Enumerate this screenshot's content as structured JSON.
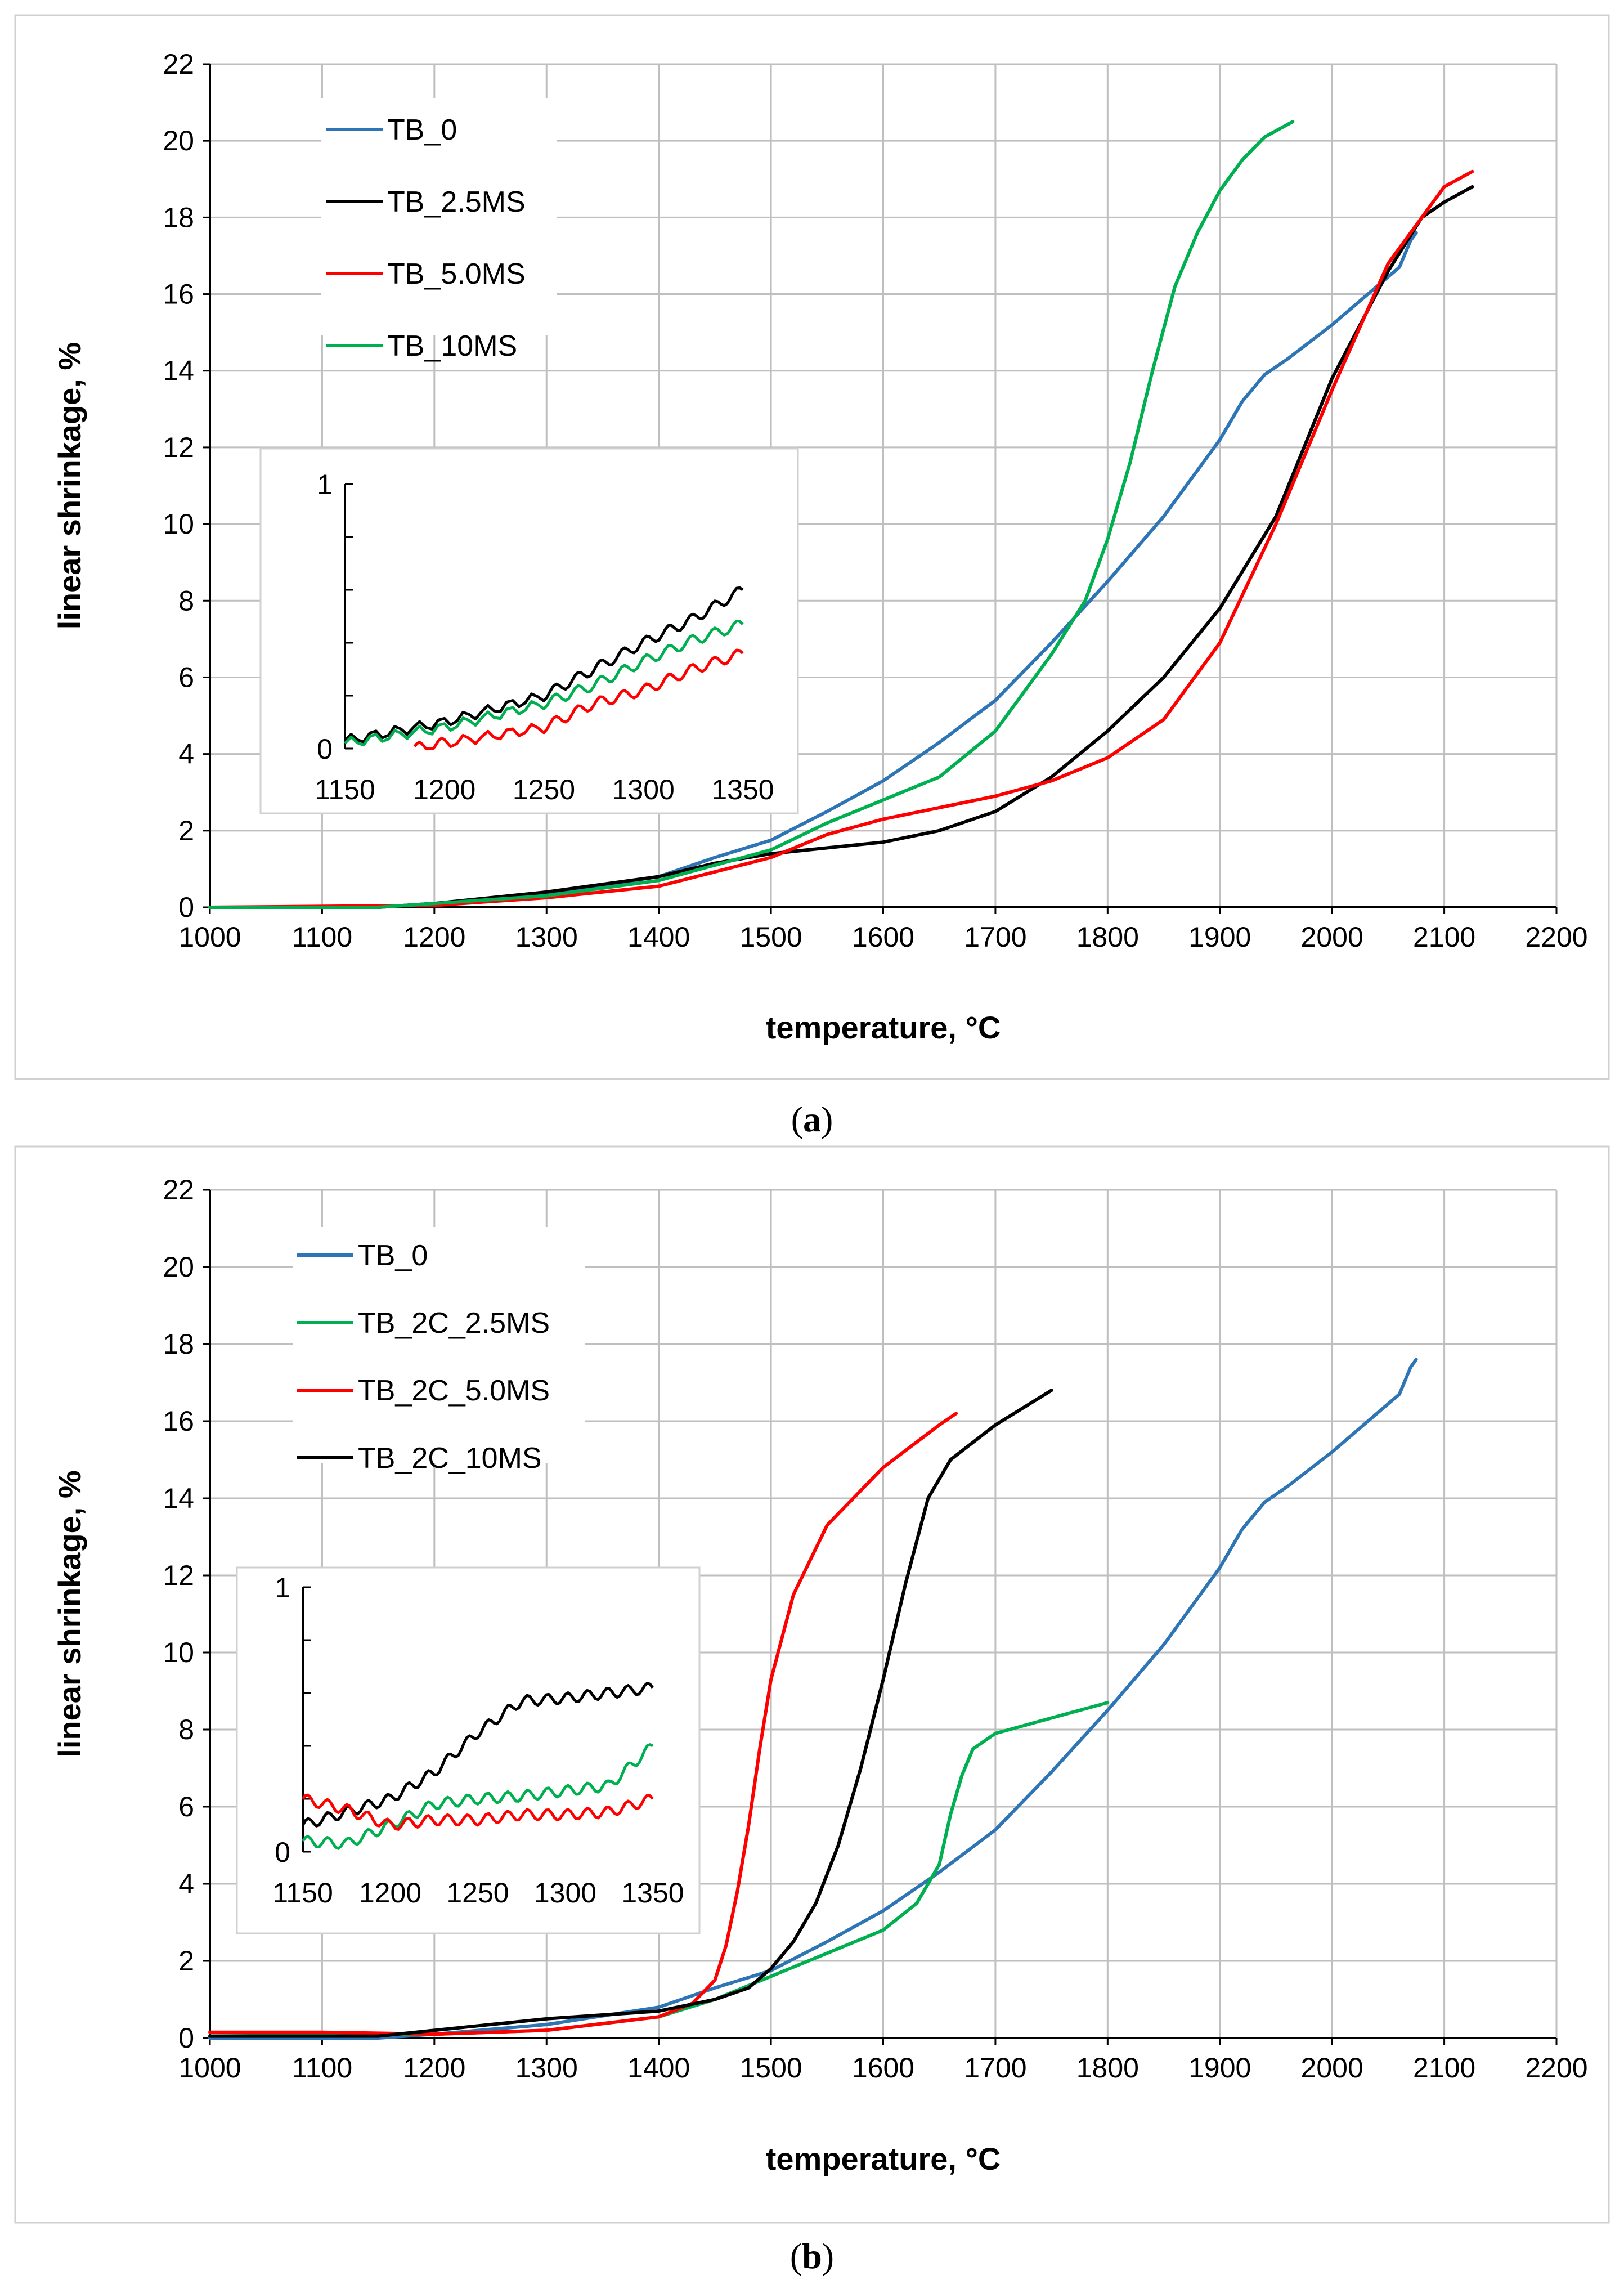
{
  "colors": {
    "blue": "#2E75B6",
    "black": "#000000",
    "red": "#FF0000",
    "green": "#00B050",
    "grid": "#BFBFBF",
    "frame": "#D0D0D0"
  },
  "chart_data": [
    {
      "id": "a",
      "caption_open": "(",
      "caption_letter": "a",
      "caption_close": ")",
      "type": "line",
      "xlabel": "temperature, °C",
      "ylabel": "linear shrinkage, %",
      "xlim": [
        1000,
        2200
      ],
      "ylim": [
        0,
        22
      ],
      "xticks": [
        "1000",
        "1100",
        "1200",
        "1300",
        "1400",
        "1500",
        "1600",
        "1700",
        "1800",
        "1900",
        "2000",
        "2100",
        "2200"
      ],
      "yticks": [
        "0",
        "2",
        "4",
        "6",
        "8",
        "10",
        "12",
        "14",
        "16",
        "18",
        "20",
        "22"
      ],
      "grid": true,
      "legend_position": "top-left",
      "series": [
        {
          "name": "TB_0",
          "color": "#2E75B6",
          "x": [
            1000,
            1150,
            1200,
            1300,
            1400,
            1450,
            1500,
            1550,
            1600,
            1650,
            1700,
            1750,
            1800,
            1850,
            1900,
            1920,
            1940,
            1960,
            2000,
            2040,
            2060,
            2070,
            2075
          ],
          "y": [
            0,
            0,
            0.1,
            0.35,
            0.8,
            1.3,
            1.75,
            2.5,
            3.3,
            4.3,
            5.4,
            6.9,
            8.5,
            10.2,
            12.2,
            13.2,
            13.9,
            14.3,
            15.2,
            16.2,
            16.7,
            17.4,
            17.6
          ]
        },
        {
          "name": "TB_2.5MS",
          "color": "#000000",
          "x": [
            1000,
            1150,
            1200,
            1300,
            1400,
            1450,
            1500,
            1600,
            1650,
            1700,
            1750,
            1800,
            1850,
            1900,
            1950,
            2000,
            2050,
            2080,
            2100,
            2125
          ],
          "y": [
            0,
            0,
            0.1,
            0.4,
            0.8,
            1.15,
            1.4,
            1.7,
            2.0,
            2.5,
            3.4,
            4.6,
            6.0,
            7.8,
            10.2,
            13.8,
            16.6,
            18.0,
            18.4,
            18.8
          ]
        },
        {
          "name": "TB_5.0MS",
          "color": "#FF0000",
          "x": [
            1000,
            1200,
            1300,
            1400,
            1500,
            1550,
            1600,
            1650,
            1700,
            1750,
            1800,
            1850,
            1900,
            1950,
            2000,
            2050,
            2080,
            2100,
            2125
          ],
          "y": [
            0,
            0.05,
            0.25,
            0.55,
            1.3,
            1.9,
            2.3,
            2.6,
            2.9,
            3.3,
            3.9,
            4.9,
            6.9,
            10.0,
            13.5,
            16.8,
            18.0,
            18.8,
            19.2
          ]
        },
        {
          "name": "TB_10MS",
          "color": "#00B050",
          "x": [
            1000,
            1150,
            1200,
            1300,
            1400,
            1500,
            1550,
            1600,
            1650,
            1700,
            1750,
            1780,
            1800,
            1820,
            1840,
            1860,
            1880,
            1900,
            1920,
            1940,
            1965
          ],
          "y": [
            0,
            0,
            0.1,
            0.3,
            0.7,
            1.5,
            2.2,
            2.8,
            3.4,
            4.6,
            6.6,
            8.0,
            9.6,
            11.6,
            14.0,
            16.2,
            17.6,
            18.7,
            19.5,
            20.1,
            20.5
          ]
        }
      ],
      "inset": {
        "xlim": [
          1150,
          1350
        ],
        "ylim": [
          0,
          1
        ],
        "xticks": [
          "1150",
          "1200",
          "1250",
          "1300",
          "1350"
        ],
        "yticks": [
          "0",
          "1"
        ],
        "series": [
          {
            "name": "TB_2.5MS",
            "color": "#000000",
            "x": [
              1150,
              1200,
              1250,
              1275,
              1300,
              1325,
              1350
            ],
            "y": [
              0.03,
              0.1,
              0.2,
              0.3,
              0.4,
              0.49,
              0.6
            ]
          },
          {
            "name": "TB_10MS",
            "color": "#00B050",
            "x": [
              1150,
              1200,
              1250,
              1275,
              1300,
              1325,
              1350
            ],
            "y": [
              0.02,
              0.08,
              0.17,
              0.24,
              0.33,
              0.41,
              0.47
            ]
          },
          {
            "name": "TB_5.0MS",
            "color": "#FF0000",
            "x": [
              1185,
              1200,
              1250,
              1275,
              1300,
              1325,
              1350
            ],
            "y": [
              0.0,
              0.02,
              0.08,
              0.17,
              0.22,
              0.3,
              0.36
            ]
          }
        ]
      }
    },
    {
      "id": "b",
      "caption_open": "(",
      "caption_letter": "b",
      "caption_close": ")",
      "type": "line",
      "xlabel": "temperature, °C",
      "ylabel": "linear shrinkage, %",
      "xlim": [
        1000,
        2200
      ],
      "ylim": [
        0,
        22
      ],
      "xticks": [
        "1000",
        "1100",
        "1200",
        "1300",
        "1400",
        "1500",
        "1600",
        "1700",
        "1800",
        "1900",
        "2000",
        "2100",
        "2200"
      ],
      "yticks": [
        "0",
        "2",
        "4",
        "6",
        "8",
        "10",
        "12",
        "14",
        "16",
        "18",
        "20",
        "22"
      ],
      "grid": true,
      "legend_position": "top-left",
      "series": [
        {
          "name": "TB_0",
          "color": "#2E75B6",
          "x": [
            1000,
            1150,
            1200,
            1300,
            1400,
            1450,
            1500,
            1550,
            1600,
            1650,
            1700,
            1750,
            1800,
            1850,
            1900,
            1920,
            1940,
            1960,
            2000,
            2040,
            2060,
            2070,
            2075
          ],
          "y": [
            0,
            0,
            0.1,
            0.35,
            0.8,
            1.3,
            1.75,
            2.5,
            3.3,
            4.3,
            5.4,
            6.9,
            8.5,
            10.2,
            12.2,
            13.2,
            13.9,
            14.3,
            15.2,
            16.2,
            16.7,
            17.4,
            17.6
          ]
        },
        {
          "name": "TB_2C_2.5MS",
          "color": "#00B050",
          "x": [
            1000,
            1200,
            1300,
            1400,
            1450,
            1500,
            1550,
            1600,
            1630,
            1650,
            1660,
            1670,
            1680,
            1700,
            1750,
            1800
          ],
          "y": [
            0.05,
            0.1,
            0.2,
            0.55,
            1.0,
            1.6,
            2.2,
            2.8,
            3.5,
            4.5,
            5.8,
            6.8,
            7.5,
            7.9,
            8.3,
            8.7
          ]
        },
        {
          "name": "TB_2C_5.0MS",
          "color": "#FF0000",
          "x": [
            1000,
            1100,
            1200,
            1300,
            1400,
            1430,
            1450,
            1460,
            1470,
            1480,
            1490,
            1500,
            1520,
            1550,
            1600,
            1650,
            1665
          ],
          "y": [
            0.15,
            0.15,
            0.1,
            0.2,
            0.55,
            0.9,
            1.5,
            2.4,
            3.8,
            5.5,
            7.5,
            9.3,
            11.5,
            13.3,
            14.8,
            15.9,
            16.2
          ]
        },
        {
          "name": "TB_2C_10MS",
          "color": "#000000",
          "x": [
            1000,
            1150,
            1200,
            1300,
            1400,
            1450,
            1480,
            1500,
            1520,
            1540,
            1560,
            1580,
            1600,
            1620,
            1640,
            1660,
            1700,
            1750
          ],
          "y": [
            0.05,
            0.05,
            0.2,
            0.5,
            0.7,
            1.0,
            1.3,
            1.8,
            2.5,
            3.5,
            5.0,
            7.0,
            9.3,
            11.8,
            14.0,
            15.0,
            15.9,
            16.8
          ]
        }
      ],
      "inset": {
        "xlim": [
          1150,
          1350
        ],
        "ylim": [
          0,
          1
        ],
        "xticks": [
          "1150",
          "1200",
          "1250",
          "1300",
          "1350"
        ],
        "yticks": [
          "0",
          "1"
        ],
        "series": [
          {
            "name": "TB_2C_10MS",
            "color": "#000000",
            "x": [
              1150,
              1175,
              1200,
              1225,
              1250,
              1275,
              1300,
              1325,
              1350
            ],
            "y": [
              0.1,
              0.15,
              0.2,
              0.3,
              0.45,
              0.57,
              0.58,
              0.6,
              0.62
            ]
          },
          {
            "name": "TB_2C_2.5MS",
            "color": "#00B050",
            "x": [
              1150,
              1175,
              1200,
              1225,
              1250,
              1275,
              1300,
              1325,
              1350
            ],
            "y": [
              0.04,
              0.03,
              0.1,
              0.18,
              0.2,
              0.21,
              0.23,
              0.25,
              0.4
            ]
          },
          {
            "name": "TB_2C_5.0MS",
            "color": "#FF0000",
            "x": [
              1150,
              1175,
              1200,
              1225,
              1250,
              1275,
              1300,
              1325,
              1350
            ],
            "y": [
              0.2,
              0.16,
              0.1,
              0.12,
              0.12,
              0.14,
              0.14,
              0.15,
              0.2
            ]
          }
        ]
      }
    }
  ]
}
